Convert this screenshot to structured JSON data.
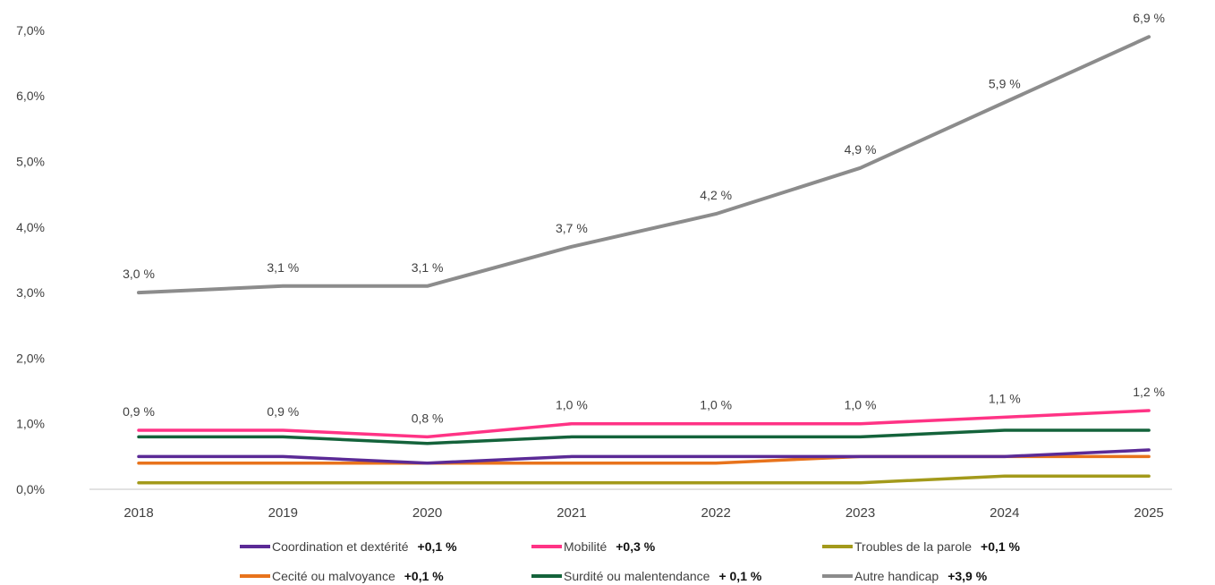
{
  "chart_data": {
    "type": "line",
    "title": "",
    "xlabel": "",
    "ylabel": "",
    "categories": [
      "2018",
      "2019",
      "2020",
      "2021",
      "2022",
      "2023",
      "2024",
      "2025"
    ],
    "ylim": [
      0,
      7
    ],
    "yticks": [
      "0,0%",
      "1,0%",
      "2,0%",
      "3,0%",
      "4,0%",
      "5,0%",
      "6,0%",
      "7,0%"
    ],
    "grid": false,
    "legend_position": "bottom",
    "series": [
      {
        "name": "Coordination et dextérité",
        "change": "+0,1 %",
        "color": "#5b2a96",
        "values": [
          0.5,
          0.5,
          0.4,
          0.5,
          0.5,
          0.5,
          0.5,
          0.6
        ]
      },
      {
        "name": "Mobilité",
        "change": "+0,3 %",
        "color": "#ff3385",
        "values": [
          0.9,
          0.9,
          0.8,
          1.0,
          1.0,
          1.0,
          1.1,
          1.2
        ],
        "labels": [
          "0,9 %",
          "0,9 %",
          "0,8 %",
          "1,0 %",
          "1,0 %",
          "1,0 %",
          "1,1 %",
          "1,2 %"
        ]
      },
      {
        "name": "Troubles de la parole",
        "change": "+0,1 %",
        "color": "#a39a1b",
        "values": [
          0.1,
          0.1,
          0.1,
          0.1,
          0.1,
          0.1,
          0.2,
          0.2
        ]
      },
      {
        "name": "Cecité ou malvoyance",
        "change": "+0,1 %",
        "color": "#e8731c",
        "values": [
          0.4,
          0.4,
          0.4,
          0.4,
          0.4,
          0.5,
          0.5,
          0.5
        ]
      },
      {
        "name": "Surdité ou malentendance",
        "change": "+ 0,1 %",
        "color": "#14633b",
        "values": [
          0.8,
          0.8,
          0.7,
          0.8,
          0.8,
          0.8,
          0.9,
          0.9
        ]
      },
      {
        "name": "Autre handicap",
        "change": "+3,9 %",
        "color": "#8c8c8c",
        "values": [
          3.0,
          3.1,
          3.1,
          3.7,
          4.2,
          4.9,
          5.9,
          6.9
        ],
        "labels": [
          "3,0 %",
          "3,1 %",
          "3,1 %",
          "3,7 %",
          "4,2 %",
          "4,9 %",
          "5,9 %",
          "6,9 %"
        ]
      }
    ]
  }
}
